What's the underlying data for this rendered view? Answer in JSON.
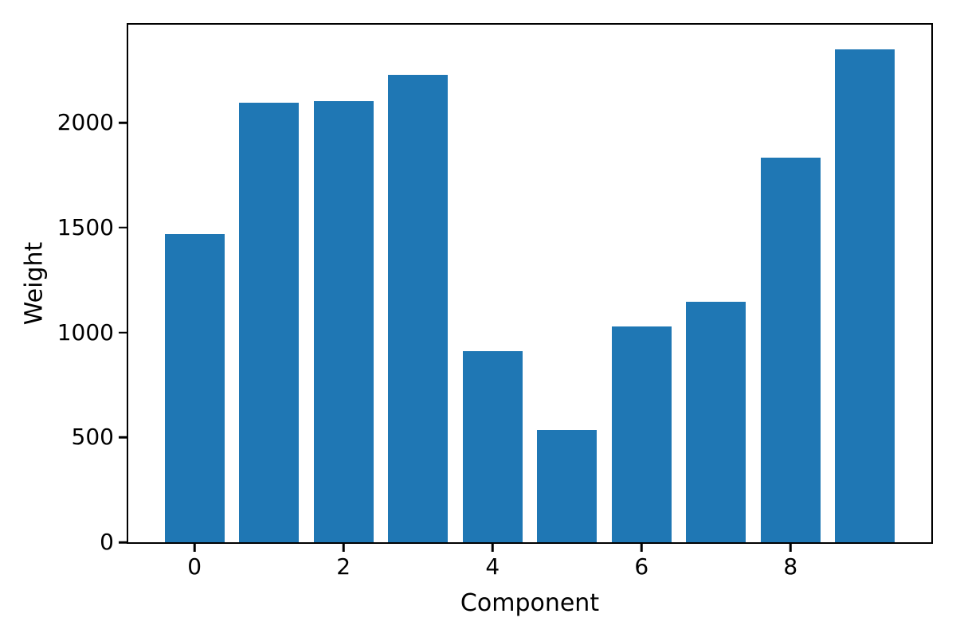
{
  "figure": {
    "background": "#ffffff",
    "spine_color": "#000000",
    "text_color": "#000000"
  },
  "chart_data": {
    "type": "bar",
    "title": "",
    "xlabel": "Component",
    "ylabel": "Weight",
    "x": [
      0,
      1,
      2,
      3,
      4,
      5,
      6,
      7,
      8,
      9
    ],
    "values": [
      1470,
      2095,
      2105,
      2230,
      910,
      535,
      1030,
      1145,
      1835,
      2350
    ],
    "bar_color": "#1f77b4",
    "bar_width": 0.8,
    "xticks": [
      0,
      2,
      4,
      6,
      8
    ],
    "yticks": [
      0,
      500,
      1000,
      1500,
      2000
    ],
    "xlim": [
      -0.89,
      9.89
    ],
    "ylim": [
      0,
      2467.5
    ],
    "grid": false,
    "legend": "none"
  }
}
